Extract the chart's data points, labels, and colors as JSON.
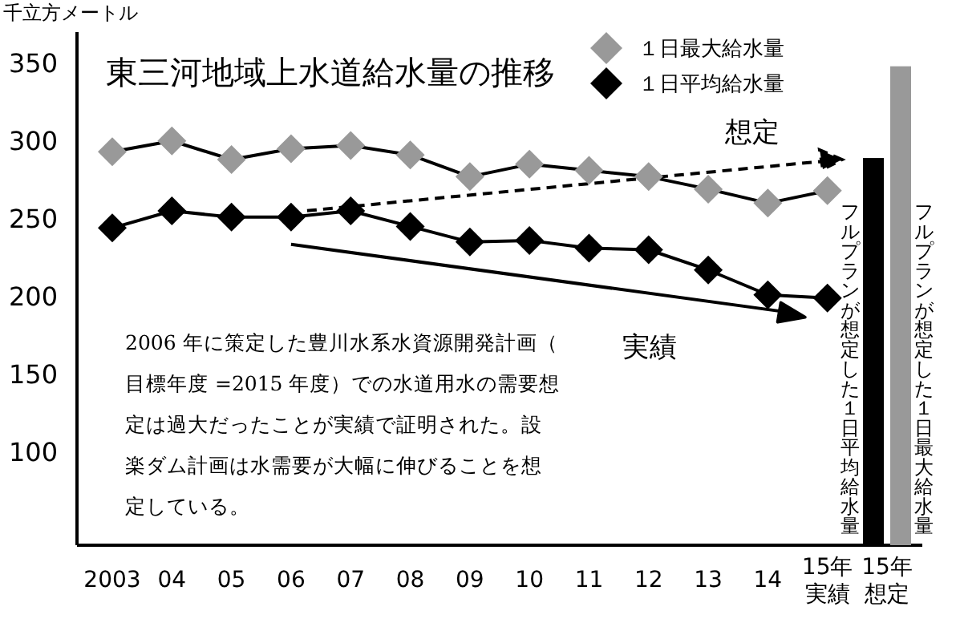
{
  "chart_data": {
    "type": "line",
    "title": "東三河地域上水道給水量の推移",
    "ylabel": "千立方メートル",
    "categories": [
      "2003",
      "04",
      "05",
      "06",
      "07",
      "08",
      "09",
      "10",
      "11",
      "12",
      "13",
      "14",
      "15年実績",
      "15年想定"
    ],
    "series": [
      {
        "name": "１日最大給水量",
        "color": "#999999",
        "values": [
          293,
          300,
          288,
          295,
          297,
          291,
          277,
          285,
          281,
          277,
          269,
          260,
          268,
          null
        ]
      },
      {
        "name": "１日平均給水量",
        "color": "#000000",
        "values": [
          244,
          255,
          251,
          251,
          255,
          245,
          235,
          236,
          231,
          230,
          217,
          201,
          199,
          null
        ]
      },
      {
        "type": "bar",
        "name": "フルプランが想定した１日平均給水量",
        "color": "#000000",
        "values": [
          null,
          null,
          null,
          null,
          null,
          null,
          null,
          null,
          null,
          null,
          null,
          null,
          null,
          289
        ]
      },
      {
        "type": "bar",
        "name": "フルプランが想定した１日最大給水量",
        "color": "#999999",
        "values": [
          null,
          null,
          null,
          null,
          null,
          null,
          null,
          null,
          null,
          null,
          null,
          null,
          null,
          348
        ]
      }
    ],
    "ylim": [
      40,
      370
    ],
    "yticks": [
      100,
      150,
      200,
      250,
      300,
      350
    ],
    "grid": false,
    "legend": "top right",
    "marker": "diamond",
    "line_style": "solid",
    "annotations": [
      "想定",
      "実績",
      "2006 年に策定した豊川水系水資源開発計画（目標年度 =2015 年度）での水道用水の需要想定は過大だったことが実績で証明された。設楽ダム計画は水需要が大幅に伸びることを想定している。"
    ]
  }
}
